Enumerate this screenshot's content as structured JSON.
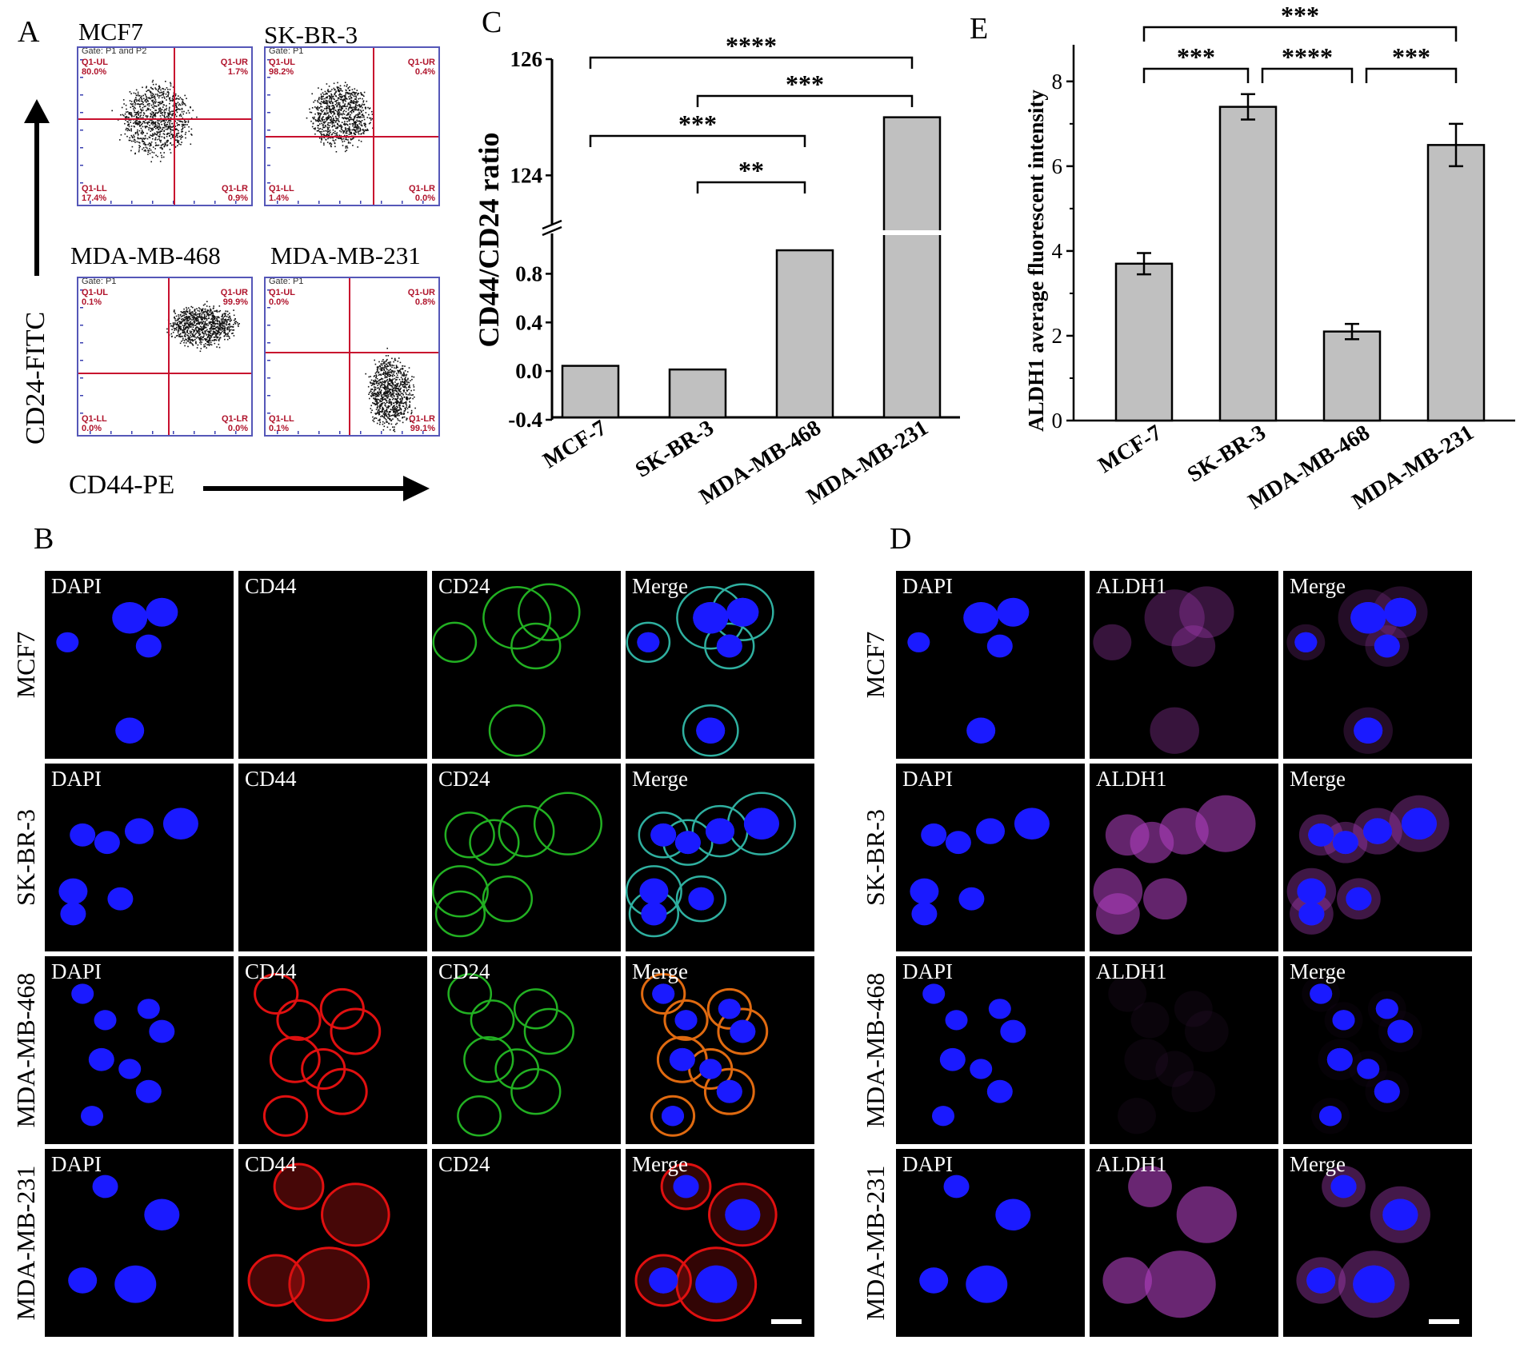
{
  "panel_letters": {
    "a": "A",
    "b": "B",
    "c": "C",
    "d": "D",
    "e": "E"
  },
  "flow": {
    "y_axis_label": "CD24-FITC",
    "x_axis_label": "CD44-PE",
    "plots": [
      {
        "title": "MCF7",
        "gate": "Gate: P1 and P2",
        "ul": {
          "name": "Q1-UL",
          "value": "80.0%"
        },
        "ur": {
          "name": "Q1-UR",
          "value": "1.7%"
        },
        "ll": {
          "name": "Q1-LL",
          "value": "17.4%"
        },
        "lr": {
          "name": "Q1-LR",
          "value": "0.9%"
        }
      },
      {
        "title": "SK-BR-3",
        "gate": "Gate: P1",
        "ul": {
          "name": "Q1-UL",
          "value": "98.2%"
        },
        "ur": {
          "name": "Q1-UR",
          "value": "0.4%"
        },
        "ll": {
          "name": "Q1-LL",
          "value": "1.4%"
        },
        "lr": {
          "name": "Q1-LR",
          "value": "0.0%"
        }
      },
      {
        "title": "MDA-MB-468",
        "gate": "Gate: P1",
        "ul": {
          "name": "Q1-UL",
          "value": "0.1%"
        },
        "ur": {
          "name": "Q1-UR",
          "value": "99.9%"
        },
        "ll": {
          "name": "Q1-LL",
          "value": "0.0%"
        },
        "lr": {
          "name": "Q1-LR",
          "value": "0.0%"
        }
      },
      {
        "title": "MDA-MB-231",
        "gate": "Gate: P1",
        "ul": {
          "name": "Q1-UL",
          "value": "0.0%"
        },
        "ur": {
          "name": "Q1-UR",
          "value": "0.8%"
        },
        "ll": {
          "name": "Q1-LL",
          "value": "0.1%"
        },
        "lr": {
          "name": "Q1-LR",
          "value": "99.1%"
        }
      }
    ]
  },
  "chart_data": [
    {
      "id": "C",
      "type": "bar",
      "ylabel": "CD44/CD24 ratio",
      "categories": [
        "MCF-7",
        "SK-BR-3",
        "MDA-MB-468",
        "MDA-MB-231"
      ],
      "values": [
        0.03,
        0.0,
        0.98,
        125.0
      ],
      "axis_break": {
        "lower_range": [
          -0.4,
          1.0
        ],
        "upper_range": [
          123.0,
          126.0
        ]
      },
      "lower_ticks": [
        "-0.4",
        "0.0",
        "0.4",
        "0.8"
      ],
      "upper_ticks": [
        "124",
        "126"
      ],
      "significance": [
        {
          "from": 0,
          "to": 3,
          "label": "****"
        },
        {
          "from": 1,
          "to": 3,
          "label": "***"
        },
        {
          "from": 0,
          "to": 2,
          "label": "***"
        },
        {
          "from": 1,
          "to": 2,
          "label": "**"
        }
      ]
    },
    {
      "id": "E",
      "type": "bar",
      "ylabel": "ALDH1 average fluorescent intensity",
      "categories": [
        "MCF-7",
        "SK-BR-3",
        "MDA-MB-468",
        "MDA-MB-231"
      ],
      "values": [
        3.7,
        7.4,
        2.1,
        6.5
      ],
      "errors": [
        0.25,
        0.3,
        0.18,
        0.5
      ],
      "ylim": [
        0,
        8.6
      ],
      "ticks": [
        "0",
        "2",
        "4",
        "6",
        "8"
      ],
      "significance": [
        {
          "from": 0,
          "to": 3,
          "label": "***"
        },
        {
          "from": 0,
          "to": 1,
          "label": "***"
        },
        {
          "from": 1,
          "to": 2,
          "label": "****"
        },
        {
          "from": 2,
          "to": 3,
          "label": "***"
        }
      ]
    }
  ],
  "microscopy_b": {
    "rows": [
      "MCF7",
      "SK-BR-3",
      "MDA-MB-468",
      "MDA-MB-231"
    ],
    "channels": [
      "DAPI",
      "CD44",
      "CD24",
      "Merge"
    ]
  },
  "microscopy_d": {
    "rows": [
      "MCF7",
      "SK-BR-3",
      "MDA-MB-468",
      "MDA-MB-231"
    ],
    "channels": [
      "DAPI",
      "ALDH1",
      "Merge"
    ]
  },
  "colors": {
    "dapi": "#1a1aff",
    "cd44": "#e01010",
    "cd24": "#22b022",
    "aldh1": "#b040c0",
    "gate": "#c8102e",
    "bar": "#c0c0c0"
  }
}
